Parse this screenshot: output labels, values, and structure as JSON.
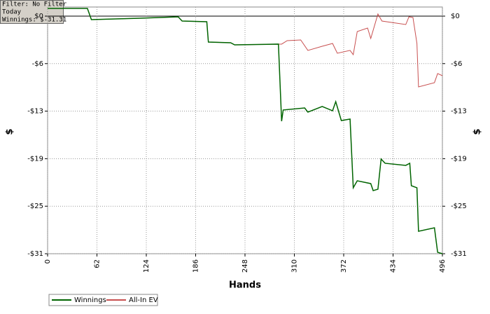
{
  "chart_data": {
    "type": "line",
    "info": [
      "Filter: No Filter",
      "Today",
      "Winnings: $-31.31"
    ],
    "xlabel": "Hands",
    "ylabel": "$",
    "y2label": "$",
    "xlim": [
      0,
      496
    ],
    "xticks": [
      0,
      62,
      124,
      186,
      248,
      310,
      372,
      434,
      496
    ],
    "ylim": [
      -31.31,
      1.2
    ],
    "yticks": [
      {
        "value": 0,
        "label": "$0"
      },
      {
        "value": -6.26,
        "label": "-$6"
      },
      {
        "value": -12.52,
        "label": "-$13"
      },
      {
        "value": -18.79,
        "label": "-$19"
      },
      {
        "value": -25.05,
        "label": "-$25"
      },
      {
        "value": -31.31,
        "label": "-$31"
      }
    ],
    "grid": true,
    "legend": "bottom-left",
    "series": [
      {
        "name": "Winnings",
        "color": "#006400",
        "x": [
          0,
          50,
          55,
          116,
          164,
          169,
          200,
          202,
          230,
          235,
          290,
          294,
          296,
          323,
          327,
          345,
          358,
          362,
          369,
          380,
          384,
          389,
          406,
          409,
          415,
          419,
          424,
          450,
          455,
          457,
          464,
          466,
          486,
          490,
          496
        ],
        "values": [
          1.02,
          1.02,
          -0.46,
          -0.28,
          -0.09,
          -0.65,
          -0.74,
          -3.42,
          -3.51,
          -3.79,
          -3.69,
          -13.85,
          -12.37,
          -12.1,
          -12.65,
          -11.91,
          -12.47,
          -11.27,
          -13.76,
          -13.57,
          -22.62,
          -21.7,
          -22.07,
          -22.99,
          -22.81,
          -18.84,
          -19.39,
          -19.67,
          -19.39,
          -22.35,
          -22.62,
          -28.35,
          -27.89,
          -31.12,
          -31.31
        ]
      },
      {
        "name": "All-In EV",
        "color": "#c85050",
        "x": [
          0,
          50,
          55,
          116,
          164,
          169,
          200,
          202,
          230,
          235,
          290,
          294,
          301,
          318,
          327,
          345,
          358,
          364,
          380,
          384,
          389,
          402,
          406,
          415,
          420,
          450,
          454,
          459,
          464,
          466,
          486,
          490,
          496
        ],
        "values": [
          1.02,
          1.02,
          -0.46,
          -0.28,
          -0.09,
          -0.65,
          -0.74,
          -3.42,
          -3.51,
          -3.79,
          -3.69,
          -3.69,
          -3.23,
          -3.14,
          -4.52,
          -3.97,
          -3.6,
          -4.89,
          -4.52,
          -5.08,
          -2.03,
          -1.57,
          -2.95,
          0.28,
          -0.65,
          -1.11,
          -0.09,
          -0.18,
          -3.6,
          -9.33,
          -8.77,
          -7.57,
          -7.85
        ]
      }
    ]
  }
}
